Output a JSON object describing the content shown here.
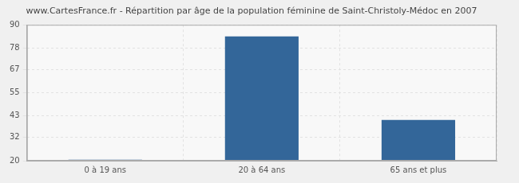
{
  "chart_data": {
    "type": "bar",
    "title": "www.CartesFrance.fr - Répartition par âge de la population féminine de Saint-Christoly-Médoc en 2007",
    "categories": [
      "0 à 19 ans",
      "20 à 64 ans",
      "65 ans et plus"
    ],
    "values": [
      20.5,
      84,
      41
    ],
    "color": "#336699",
    "ylim": [
      20,
      90
    ],
    "yticks": [
      20,
      32,
      43,
      55,
      67,
      78,
      90
    ],
    "grid": true
  }
}
